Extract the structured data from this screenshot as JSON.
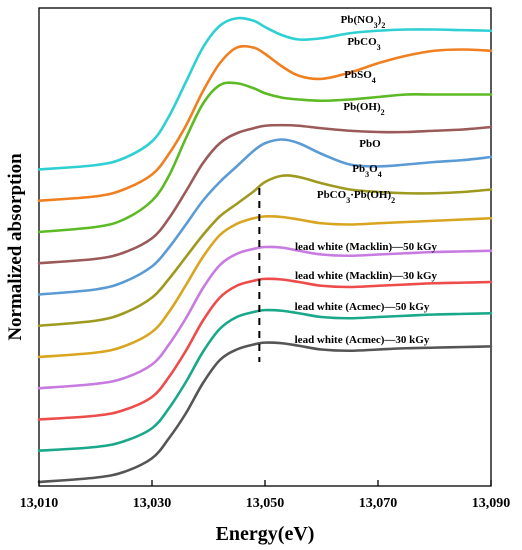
{
  "chart_data": {
    "type": "line",
    "xlabel": "Energy(eV)",
    "ylabel": "Normalized absorption",
    "xlim": [
      13010,
      13090
    ],
    "x_ticks": [
      "13,010",
      "13,030",
      "13,050",
      "13,070",
      "13,090"
    ],
    "x_tick_values": [
      13010,
      13030,
      13050,
      13070,
      13090
    ],
    "y_ticks_shown": false,
    "grid": false,
    "legend": "inline labels above each curve",
    "reference_line": {
      "x": 13049,
      "style": "dashed",
      "color": "#000000"
    },
    "series": [
      {
        "name": "lead white (Acmec)—30 kGy",
        "label_parts": [
          {
            "t": "lead white (Acmec)—30 kGy",
            "sub": false
          }
        ],
        "color": "#555555",
        "offset": 0.0,
        "x": [
          13010,
          13020,
          13025,
          13030,
          13033,
          13036,
          13039,
          13042,
          13045,
          13048,
          13050,
          13053,
          13056,
          13060,
          13065,
          13070,
          13075,
          13080,
          13085,
          13090
        ],
        "y": [
          0.0,
          0.07,
          0.16,
          0.38,
          0.7,
          1.1,
          1.58,
          1.95,
          2.12,
          2.2,
          2.23,
          2.22,
          2.18,
          2.12,
          2.1,
          2.12,
          2.14,
          2.15,
          2.16,
          2.17
        ]
      },
      {
        "name": "lead white (Acmec)—50 kGy",
        "label_parts": [
          {
            "t": "lead white (Acmec)—50 kGy",
            "sub": false
          }
        ],
        "color": "#1aa88a",
        "offset": 0.5,
        "x": [
          13010,
          13020,
          13025,
          13030,
          13033,
          13036,
          13039,
          13042,
          13045,
          13048,
          13050,
          13053,
          13056,
          13060,
          13065,
          13070,
          13075,
          13080,
          13085,
          13090
        ],
        "y": [
          0.0,
          0.06,
          0.15,
          0.36,
          0.68,
          1.1,
          1.58,
          1.95,
          2.14,
          2.22,
          2.25,
          2.24,
          2.2,
          2.14,
          2.12,
          2.14,
          2.16,
          2.18,
          2.19,
          2.2
        ]
      },
      {
        "name": "lead white (Macklin)—30 kGy",
        "label_parts": [
          {
            "t": "lead white (Macklin)—30 kGy",
            "sub": false
          }
        ],
        "color": "#ee4b4b",
        "offset": 1.0,
        "x": [
          13010,
          13020,
          13025,
          13030,
          13033,
          13036,
          13039,
          13042,
          13045,
          13048,
          13050,
          13053,
          13056,
          13060,
          13065,
          13070,
          13075,
          13080,
          13085,
          13090
        ],
        "y": [
          0.0,
          0.06,
          0.15,
          0.36,
          0.68,
          1.1,
          1.58,
          1.95,
          2.14,
          2.22,
          2.25,
          2.24,
          2.2,
          2.14,
          2.12,
          2.14,
          2.16,
          2.18,
          2.19,
          2.2
        ]
      },
      {
        "name": "lead white (Macklin)—50 kGy",
        "label_parts": [
          {
            "t": "lead white (Macklin)—50 kGy",
            "sub": false
          }
        ],
        "color": "#c77be0",
        "offset": 1.5,
        "x": [
          13010,
          13020,
          13025,
          13030,
          13033,
          13036,
          13039,
          13042,
          13045,
          13048,
          13050,
          13053,
          13056,
          13060,
          13065,
          13070,
          13075,
          13080,
          13085,
          13090
        ],
        "y": [
          0.0,
          0.07,
          0.16,
          0.38,
          0.7,
          1.12,
          1.6,
          1.97,
          2.15,
          2.23,
          2.26,
          2.25,
          2.2,
          2.14,
          2.12,
          2.14,
          2.16,
          2.18,
          2.19,
          2.2
        ]
      },
      {
        "name": "PbCO3·Pb(OH)2",
        "label_parts": [
          {
            "t": "PbCO",
            "sub": false
          },
          {
            "t": "3",
            "sub": true
          },
          {
            "t": "·Pb(OH)",
            "sub": false
          },
          {
            "t": "2",
            "sub": true
          }
        ],
        "color": "#d9a520",
        "offset": 2.0,
        "x": [
          13010,
          13020,
          13025,
          13030,
          13033,
          13036,
          13039,
          13042,
          13045,
          13048,
          13050,
          13053,
          13056,
          13060,
          13065,
          13070,
          13075,
          13080,
          13085,
          13090
        ],
        "y": [
          0.0,
          0.07,
          0.17,
          0.4,
          0.72,
          1.15,
          1.6,
          1.95,
          2.13,
          2.22,
          2.25,
          2.24,
          2.2,
          2.14,
          2.12,
          2.14,
          2.16,
          2.18,
          2.2,
          2.22
        ]
      },
      {
        "name": "Pb3O4",
        "label_parts": [
          {
            "t": "Pb",
            "sub": false
          },
          {
            "t": "3",
            "sub": true
          },
          {
            "t": "O",
            "sub": false
          },
          {
            "t": "4",
            "sub": true
          }
        ],
        "color": "#9e9a1f",
        "offset": 2.5,
        "x": [
          13010,
          13020,
          13025,
          13030,
          13033,
          13036,
          13039,
          13042,
          13045,
          13048,
          13050,
          13053,
          13056,
          13060,
          13065,
          13070,
          13075,
          13080,
          13085,
          13090
        ],
        "y": [
          0.0,
          0.08,
          0.2,
          0.45,
          0.75,
          1.1,
          1.45,
          1.75,
          1.95,
          2.15,
          2.3,
          2.4,
          2.38,
          2.28,
          2.18,
          2.14,
          2.12,
          2.12,
          2.14,
          2.18
        ]
      },
      {
        "name": "PbO",
        "label_parts": [
          {
            "t": "PbO",
            "sub": false
          }
        ],
        "color": "#5b9bd5",
        "offset": 3.0,
        "x": [
          13010,
          13020,
          13025,
          13030,
          13033,
          13036,
          13039,
          13042,
          13045,
          13048,
          13050,
          13053,
          13056,
          13060,
          13065,
          13070,
          13075,
          13080,
          13085,
          13090
        ],
        "y": [
          0.0,
          0.08,
          0.2,
          0.45,
          0.75,
          1.12,
          1.5,
          1.8,
          2.05,
          2.3,
          2.42,
          2.48,
          2.42,
          2.25,
          2.08,
          2.05,
          2.08,
          2.12,
          2.15,
          2.2
        ]
      },
      {
        "name": "Pb(OH)2",
        "label_parts": [
          {
            "t": "Pb(OH)",
            "sub": false
          },
          {
            "t": "2",
            "sub": true
          }
        ],
        "color": "#9b5a5a",
        "offset": 3.5,
        "x": [
          13010,
          13020,
          13025,
          13030,
          13033,
          13036,
          13039,
          13042,
          13045,
          13048,
          13050,
          13053,
          13056,
          13060,
          13065,
          13070,
          13075,
          13080,
          13085,
          13090
        ],
        "y": [
          0.0,
          0.07,
          0.17,
          0.4,
          0.72,
          1.15,
          1.6,
          1.92,
          2.08,
          2.16,
          2.2,
          2.21,
          2.2,
          2.16,
          2.12,
          2.1,
          2.1,
          2.12,
          2.14,
          2.18
        ]
      },
      {
        "name": "PbSO4",
        "label_parts": [
          {
            "t": "PbSO",
            "sub": false
          },
          {
            "t": "4",
            "sub": true
          }
        ],
        "color": "#5cba24",
        "offset": 4.0,
        "x": [
          13010,
          13020,
          13025,
          13030,
          13033,
          13036,
          13039,
          13042,
          13045,
          13048,
          13050,
          13053,
          13056,
          13060,
          13065,
          13070,
          13075,
          13080,
          13085,
          13090
        ],
        "y": [
          0.0,
          0.08,
          0.2,
          0.5,
          0.9,
          1.5,
          2.05,
          2.35,
          2.38,
          2.3,
          2.22,
          2.15,
          2.12,
          2.1,
          2.12,
          2.16,
          2.2,
          2.2,
          2.2,
          2.2
        ]
      },
      {
        "name": "PbCO3",
        "label_parts": [
          {
            "t": "PbCO",
            "sub": false
          },
          {
            "t": "3",
            "sub": true
          }
        ],
        "color": "#f07f20",
        "offset": 4.5,
        "x": [
          13010,
          13020,
          13025,
          13030,
          13033,
          13036,
          13039,
          13042,
          13045,
          13048,
          13050,
          13053,
          13056,
          13060,
          13065,
          13070,
          13075,
          13080,
          13085,
          13090
        ],
        "y": [
          0.0,
          0.07,
          0.18,
          0.42,
          0.75,
          1.2,
          1.75,
          2.2,
          2.45,
          2.45,
          2.35,
          2.15,
          2.0,
          1.95,
          2.05,
          2.2,
          2.32,
          2.4,
          2.42,
          2.4
        ]
      },
      {
        "name": "Pb(NO3)2",
        "label_parts": [
          {
            "t": "Pb(NO",
            "sub": false
          },
          {
            "t": "3",
            "sub": true
          },
          {
            "t": ")",
            "sub": false
          },
          {
            "t": "2",
            "sub": true
          }
        ],
        "color": "#2fd0d4",
        "offset": 5.0,
        "x": [
          13010,
          13020,
          13025,
          13030,
          13033,
          13036,
          13039,
          13042,
          13045,
          13048,
          13050,
          13053,
          13056,
          13060,
          13065,
          13070,
          13075,
          13080,
          13085,
          13090
        ],
        "y": [
          0.0,
          0.07,
          0.18,
          0.45,
          0.85,
          1.4,
          1.95,
          2.3,
          2.42,
          2.38,
          2.28,
          2.15,
          2.08,
          2.1,
          2.18,
          2.22,
          2.24,
          2.24,
          2.23,
          2.22
        ]
      }
    ]
  }
}
